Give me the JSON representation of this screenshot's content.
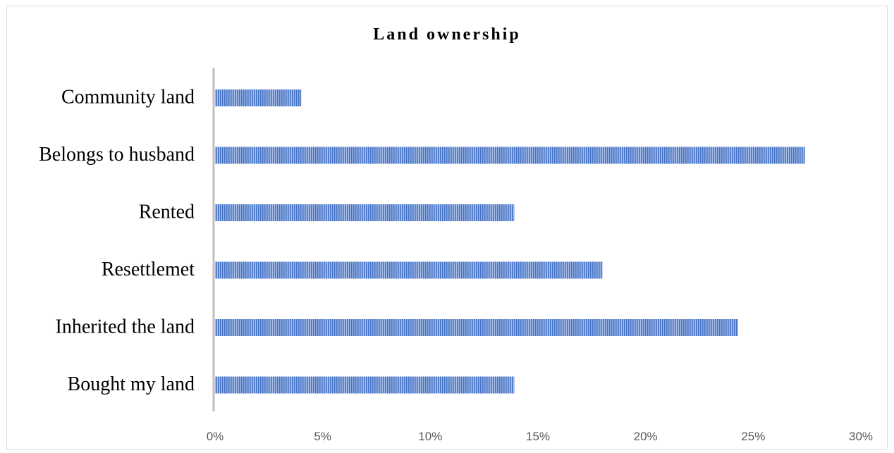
{
  "colors": {
    "bar_stripe": "#4472c4",
    "bar_gap": "#a9bfe8",
    "axis": "#bfbfbf"
  },
  "chart_data": {
    "type": "bar",
    "orientation": "horizontal",
    "title": "Land ownership",
    "categories": [
      "Community land",
      "Belongs to husband",
      "Rented",
      "Resettlemet",
      "Inherited the land",
      "Bought my land"
    ],
    "values": [
      4,
      27.4,
      13.9,
      18,
      24.3,
      13.9
    ],
    "value_unit": "%",
    "xlim": [
      0,
      30
    ],
    "xticks": [
      "0%",
      "5%",
      "10%",
      "15%",
      "20%",
      "25%",
      "30%"
    ],
    "xlabel": "",
    "ylabel": "",
    "grid": false,
    "legend": "none"
  }
}
